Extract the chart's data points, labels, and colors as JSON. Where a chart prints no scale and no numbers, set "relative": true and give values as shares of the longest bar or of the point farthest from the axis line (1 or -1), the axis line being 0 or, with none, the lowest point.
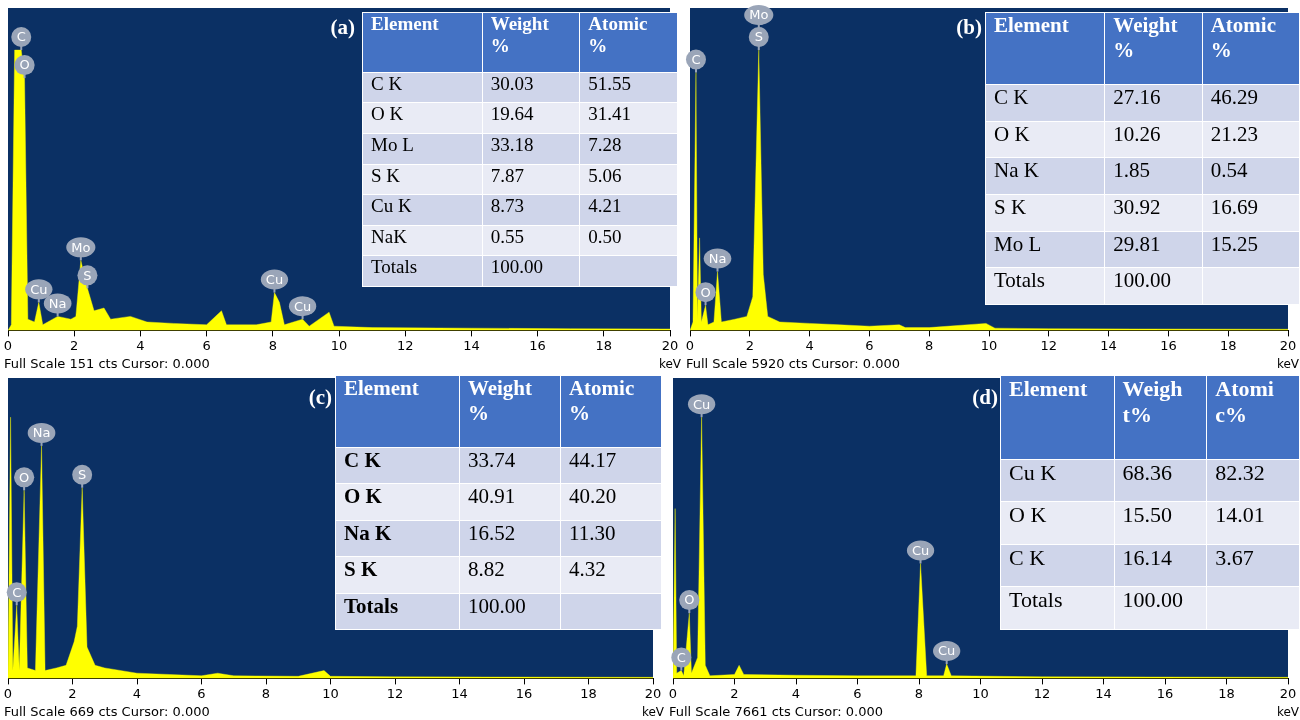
{
  "chart_data": [
    {
      "type": "area",
      "relative": true,
      "xlabel": "keV",
      "color": "#ffff00",
      "xlim": [
        0,
        20
      ],
      "xticks": [
        0,
        2,
        4,
        6,
        8,
        10,
        12,
        14,
        16,
        18,
        20
      ],
      "x": [
        0,
        0.1,
        0.2,
        0.4,
        0.5,
        0.6,
        0.8,
        0.93,
        1.05,
        1.5,
        1.9,
        2.05,
        2.2,
        2.4,
        2.6,
        2.9,
        3.1,
        3.7,
        4.2,
        5,
        6,
        6.45,
        6.6,
        7.5,
        7.95,
        8.05,
        8.2,
        8.35,
        8.9,
        9.1,
        9.7,
        9.85,
        11,
        14,
        17,
        20
      ],
      "values": [
        0,
        0.02,
        1,
        1,
        0.9,
        0.04,
        0.03,
        0.1,
        0.02,
        0.05,
        0.04,
        0.05,
        0.25,
        0.15,
        0.07,
        0.08,
        0.04,
        0.05,
        0.03,
        0.025,
        0.02,
        0.07,
        0.02,
        0.02,
        0.03,
        0.135,
        0.1,
        0.02,
        0.04,
        0.015,
        0.065,
        0.015,
        0.01,
        0.008,
        0.006,
        0.005
      ],
      "annotations": [
        "(a)",
        "Full Scale 151 cts Cursor: 0.000",
        {
          "text": "C",
          "x": 0.4,
          "y": 1
        },
        {
          "text": "O",
          "x": 0.5,
          "y": 0.9
        },
        {
          "text": "Cu",
          "x": 0.93,
          "y": 0.1
        },
        {
          "text": "Na",
          "x": 1.5,
          "y": 0.05
        },
        {
          "text": "Mo",
          "x": 2.2,
          "y": 0.25
        },
        {
          "text": "S",
          "x": 2.4,
          "y": 0.15
        },
        {
          "text": "Cu",
          "x": 8.05,
          "y": 0.135
        },
        {
          "text": "Cu",
          "x": 8.9,
          "y": 0.04
        }
      ]
    },
    {
      "type": "other",
      "annotations": [
        "Element",
        "Weight %",
        "Atomic %",
        "C K",
        "30.03",
        "51.55",
        "O K",
        "19.64",
        "31.41",
        "Mo L",
        "33.18",
        "7.28",
        "S K",
        "7.87",
        "5.06",
        "Cu K",
        "8.73",
        "4.21",
        "NaK",
        "0.55",
        "0.50",
        "Totals",
        "100.00"
      ]
    },
    {
      "type": "area",
      "relative": true,
      "xlabel": "keV",
      "color": "#ffff00",
      "xlim": [
        0,
        20
      ],
      "xticks": [
        0,
        2,
        4,
        6,
        8,
        10,
        12,
        14,
        16,
        18,
        20
      ],
      "x": [
        0,
        0.1,
        0.2,
        0.25,
        0.32,
        0.38,
        0.52,
        0.6,
        0.8,
        0.92,
        1.05,
        1.5,
        1.9,
        2.1,
        2.3,
        2.45,
        2.6,
        3,
        4,
        5,
        6,
        7,
        7.2,
        8,
        9.9,
        10.2,
        12,
        15,
        20
      ],
      "values": [
        0,
        0.03,
        0.92,
        0.04,
        0.33,
        0.03,
        0.09,
        0.02,
        0.03,
        0.21,
        0.03,
        0.04,
        0.05,
        0.12,
        1,
        0.2,
        0.05,
        0.03,
        0.025,
        0.02,
        0.015,
        0.02,
        0.01,
        0.01,
        0.025,
        0.008,
        0.006,
        0.005,
        0.004
      ],
      "annotations": [
        "(b)",
        "Full Scale 5920 cts Cursor: 0.000",
        {
          "text": "C",
          "x": 0.2,
          "y": 0.92
        },
        {
          "text": "S",
          "x": 2.3,
          "y": 1
        },
        {
          "text": "Mo",
          "x": 2.3,
          "y": 1
        },
        {
          "text": "Na",
          "x": 0.92,
          "y": 0.21
        },
        {
          "text": "O",
          "x": 0.52,
          "y": 0.09
        }
      ]
    },
    {
      "type": "other",
      "annotations": [
        "Element",
        "Weight %",
        "Atomic %",
        "C K",
        "27.16",
        "46.29",
        "O K",
        "10.26",
        "21.23",
        "Na K",
        "1.85",
        "0.54",
        "S K",
        "30.92",
        "16.69",
        "Mo L",
        "29.81",
        "15.25",
        "Totals",
        "100.00"
      ]
    },
    {
      "type": "area",
      "relative": true,
      "xlabel": "keV",
      "color": "#ffff00",
      "xlim": [
        0,
        20
      ],
      "xticks": [
        0,
        2,
        4,
        6,
        8,
        10,
        12,
        14,
        16,
        18,
        20
      ],
      "x": [
        0,
        0.08,
        0.15,
        0.27,
        0.35,
        0.5,
        0.6,
        0.85,
        1.04,
        1.15,
        1.5,
        1.8,
        2.05,
        2.15,
        2.3,
        2.45,
        2.7,
        3,
        4,
        5,
        6,
        6.5,
        7,
        9,
        9.8,
        10,
        12,
        15,
        20
      ],
      "values": [
        0,
        1,
        0.03,
        0.28,
        0.03,
        0.72,
        0.04,
        0.03,
        0.89,
        0.03,
        0.04,
        0.05,
        0.14,
        0.2,
        0.73,
        0.12,
        0.05,
        0.04,
        0.02,
        0.015,
        0.01,
        0.02,
        0.01,
        0.008,
        0.03,
        0.008,
        0.006,
        0.005,
        0.004
      ],
      "annotations": [
        "(c)",
        "Full Scale 669 cts Cursor: 0.000",
        {
          "text": "Na",
          "x": 1.04,
          "y": 0.89
        },
        {
          "text": "O",
          "x": 0.5,
          "y": 0.72
        },
        {
          "text": "S",
          "x": 2.3,
          "y": 0.73
        },
        {
          "text": "C",
          "x": 0.27,
          "y": 0.28
        }
      ]
    },
    {
      "type": "other",
      "annotations": [
        "Element",
        "Weight %",
        "Atomic %",
        "C K",
        "33.74",
        "44.17",
        "O K",
        "40.91",
        "40.20",
        "Na K",
        "16.52",
        "11.30",
        "S K",
        "8.82",
        "4.32",
        "Totals",
        "100.00"
      ]
    },
    {
      "type": "area",
      "relative": true,
      "xlabel": "keV",
      "color": "#ffff00",
      "xlim": [
        0,
        20
      ],
      "xticks": [
        0,
        2,
        4,
        6,
        8,
        10,
        12,
        14,
        16,
        18,
        20
      ],
      "x": [
        0,
        0.07,
        0.12,
        0.27,
        0.35,
        0.53,
        0.6,
        0.8,
        0.93,
        1.05,
        1.2,
        2,
        2.15,
        2.3,
        4,
        6,
        7.9,
        8.05,
        8.25,
        8.8,
        8.9,
        9.05,
        12,
        20
      ],
      "values": [
        0,
        0.65,
        0.02,
        0.03,
        0.01,
        0.25,
        0.02,
        0.08,
        1,
        0.05,
        0.01,
        0.015,
        0.05,
        0.015,
        0.012,
        0.01,
        0.01,
        0.44,
        0.01,
        0.01,
        0.055,
        0.01,
        0.006,
        0.004
      ],
      "annotations": [
        "(d)",
        "Full Scale 7661 cts Cursor: 0.000",
        {
          "text": "Cu",
          "x": 0.93,
          "y": 1
        },
        {
          "text": "O",
          "x": 0.53,
          "y": 0.25
        },
        {
          "text": "C",
          "x": 0.27,
          "y": 0.03
        },
        {
          "text": "Cu",
          "x": 8.05,
          "y": 0.44
        },
        {
          "text": "Cu",
          "x": 8.9,
          "y": 0.055
        }
      ]
    },
    {
      "type": "other",
      "annotations": [
        "Element",
        "Weight%",
        "Atomic%",
        "Cu K",
        "68.36",
        "82.32",
        "O K",
        "15.50",
        "14.01",
        "C K",
        "16.14",
        "3.67",
        "Totals",
        "100.00"
      ]
    }
  ]
}
